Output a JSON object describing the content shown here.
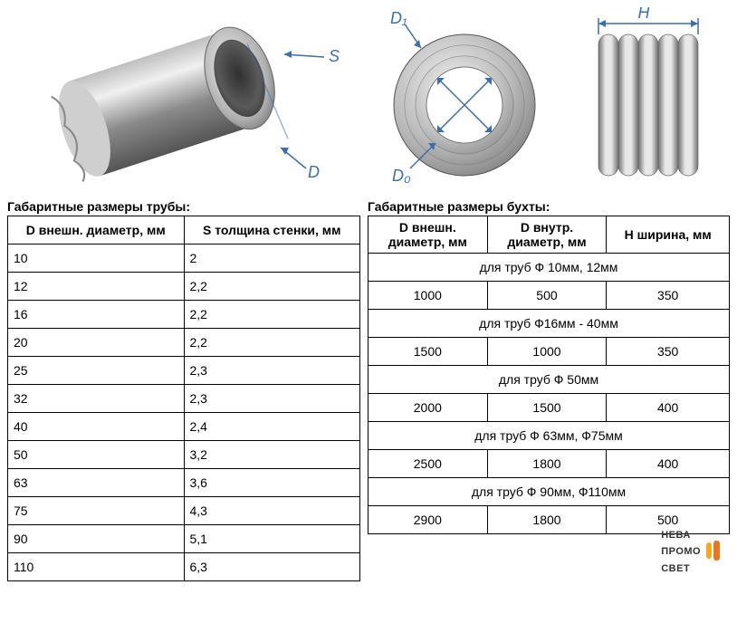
{
  "diagrams": {
    "pipe": {
      "label_S": "S",
      "label_D": "D"
    },
    "ring": {
      "label_D1": "D₁",
      "label_D0": "D₀"
    },
    "coil": {
      "label_H": "H"
    }
  },
  "table_left": {
    "title": "Габаритные размеры трубы:",
    "col1_header": "D внешн. диаметр, мм",
    "col2_header": "S толщина стенки, мм",
    "rows": [
      {
        "d": "10",
        "s": "2"
      },
      {
        "d": "12",
        "s": "2,2"
      },
      {
        "d": "16",
        "s": "2,2"
      },
      {
        "d": "20",
        "s": "2,2"
      },
      {
        "d": "25",
        "s": "2,3"
      },
      {
        "d": "32",
        "s": "2,3"
      },
      {
        "d": "40",
        "s": "2,4"
      },
      {
        "d": "50",
        "s": "3,2"
      },
      {
        "d": "63",
        "s": "3,6"
      },
      {
        "d": "75",
        "s": "4,3"
      },
      {
        "d": "90",
        "s": "5,1"
      },
      {
        "d": "110",
        "s": "6,3"
      }
    ]
  },
  "table_right": {
    "title": "Габаритные размеры бухты:",
    "col1_header": "D внешн. диаметр, мм",
    "col2_header": "D внутр. диаметр, мм",
    "col3_header": "H ширина, мм",
    "groups": [
      {
        "label": "для труб Ф 10мм, 12мм",
        "d_out": "1000",
        "d_in": "500",
        "h": "350"
      },
      {
        "label": "для труб Ф16мм - 40мм",
        "d_out": "1500",
        "d_in": "1000",
        "h": "350"
      },
      {
        "label": "для труб Ф 50мм",
        "d_out": "2000",
        "d_in": "1500",
        "h": "400"
      },
      {
        "label": "для труб Ф 63мм, Ф75мм",
        "d_out": "2500",
        "d_in": "1800",
        "h": "400"
      },
      {
        "label": "для труб Ф 90мм, Ф110мм",
        "d_out": "2900",
        "d_in": "1800",
        "h": "500"
      }
    ]
  },
  "logo": {
    "line1": "НЕВА",
    "line2": "ПРОМО",
    "line3": "СВЕТ"
  },
  "colors": {
    "dim": "#3a6fb0",
    "pipe_light": "#d8d8d8",
    "pipe_mid": "#a0a0a0",
    "pipe_dark": "#6b6b6b",
    "coil_light": "#dcdcdc",
    "coil_dark": "#808080",
    "logo_bar_left": "#f5a623",
    "logo_bar_right": "#e87722"
  }
}
